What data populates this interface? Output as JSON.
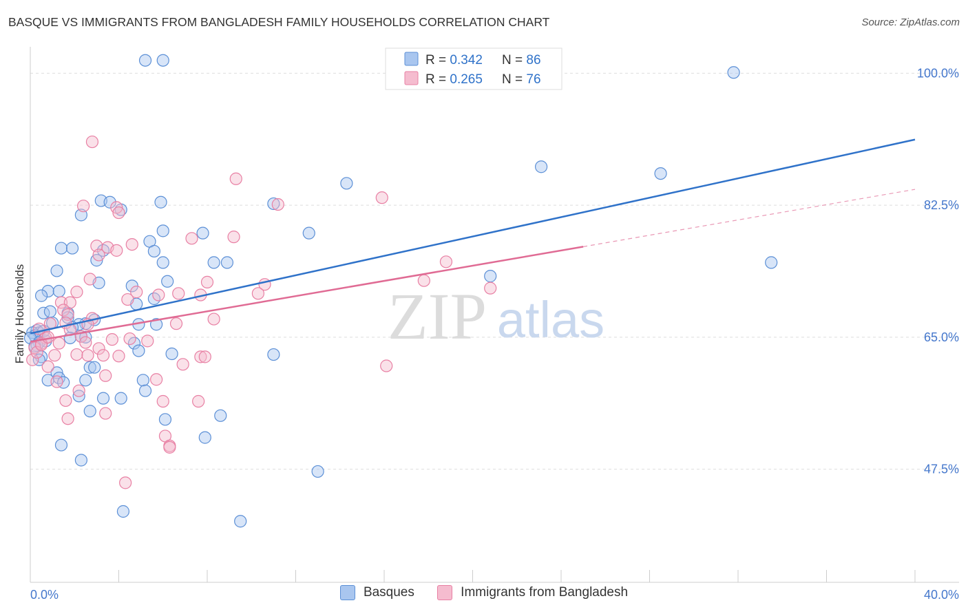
{
  "title": "BASQUE VS IMMIGRANTS FROM BANGLADESH FAMILY HOUSEHOLDS CORRELATION CHART",
  "source": "Source: ZipAtlas.com",
  "watermark": {
    "zip": "ZIP",
    "atlas": "atlas"
  },
  "colors": {
    "blue": "#5b8fd6",
    "blue_fill": "#a9c6ef",
    "blue_line": "#2f72c9",
    "pink": "#e87fa3",
    "pink_fill": "#f5bccf",
    "pink_line": "#e06b94",
    "axis_label": "#4477cc",
    "grid": "#dddddd"
  },
  "chart_data": {
    "type": "scatter",
    "ylabel": "Family Households",
    "xlim": [
      0,
      40
    ],
    "ylim": [
      32.5,
      103.5
    ],
    "x_tick_labels": {
      "left": "0.0%",
      "right": "40.0%"
    },
    "y_ticks": [
      {
        "value": 100.0,
        "label": "100.0%"
      },
      {
        "value": 82.5,
        "label": "82.5%"
      },
      {
        "value": 65.0,
        "label": "65.0%"
      },
      {
        "value": 47.5,
        "label": "47.5%"
      }
    ],
    "legend": [
      {
        "r_label": "R = ",
        "r": "0.342",
        "n_label": "N = ",
        "n": "86"
      },
      {
        "r_label": "R = ",
        "r": "0.265",
        "n_label": "N = ",
        "n": "76"
      }
    ],
    "series": [
      {
        "name": "Basques",
        "trend": {
          "x0": 0,
          "y0": 65.5,
          "x1": 40,
          "y1": 91.2
        },
        "points": [
          [
            5.2,
            101.7
          ],
          [
            6.0,
            101.7
          ],
          [
            31.8,
            100.1
          ],
          [
            23.1,
            87.6
          ],
          [
            28.5,
            86.7
          ],
          [
            14.3,
            85.4
          ],
          [
            3.2,
            83.1
          ],
          [
            5.9,
            82.9
          ],
          [
            3.6,
            82.9
          ],
          [
            11.0,
            82.7
          ],
          [
            4.1,
            81.9
          ],
          [
            2.3,
            81.2
          ],
          [
            6.0,
            79.1
          ],
          [
            7.8,
            78.8
          ],
          [
            12.6,
            78.8
          ],
          [
            5.4,
            77.7
          ],
          [
            1.4,
            76.8
          ],
          [
            1.9,
            76.8
          ],
          [
            3.3,
            76.5
          ],
          [
            5.6,
            76.4
          ],
          [
            3.0,
            75.2
          ],
          [
            6.0,
            74.9
          ],
          [
            8.3,
            74.9
          ],
          [
            8.9,
            74.9
          ],
          [
            33.5,
            74.9
          ],
          [
            1.2,
            73.8
          ],
          [
            20.8,
            73.1
          ],
          [
            6.2,
            72.4
          ],
          [
            3.1,
            72.2
          ],
          [
            4.6,
            71.8
          ],
          [
            0.8,
            71.1
          ],
          [
            1.3,
            71.1
          ],
          [
            0.5,
            70.5
          ],
          [
            5.6,
            70.1
          ],
          [
            4.8,
            69.4
          ],
          [
            0.6,
            68.2
          ],
          [
            0.9,
            68.4
          ],
          [
            1.7,
            68.2
          ],
          [
            1.7,
            67.6
          ],
          [
            2.9,
            67.3
          ],
          [
            1.0,
            66.9
          ],
          [
            2.5,
            66.8
          ],
          [
            2.2,
            66.7
          ],
          [
            4.9,
            66.7
          ],
          [
            5.7,
            66.7
          ],
          [
            1.9,
            66.3
          ],
          [
            0.3,
            65.9
          ],
          [
            0.4,
            65.6
          ],
          [
            0.1,
            65.6
          ],
          [
            0.2,
            65.2
          ],
          [
            0.0,
            64.9
          ],
          [
            2.3,
            65.1
          ],
          [
            2.5,
            65.0
          ],
          [
            1.8,
            64.9
          ],
          [
            0.7,
            64.5
          ],
          [
            0.4,
            64.3
          ],
          [
            4.7,
            64.2
          ],
          [
            0.3,
            63.9
          ],
          [
            4.9,
            63.2
          ],
          [
            6.4,
            62.8
          ],
          [
            11.0,
            62.7
          ],
          [
            0.5,
            62.4
          ],
          [
            2.7,
            61.0
          ],
          [
            2.9,
            61.0
          ],
          [
            1.2,
            60.3
          ],
          [
            1.3,
            59.6
          ],
          [
            0.8,
            59.3
          ],
          [
            2.5,
            59.3
          ],
          [
            5.1,
            59.3
          ],
          [
            1.5,
            59.0
          ],
          [
            5.2,
            57.9
          ],
          [
            3.3,
            56.9
          ],
          [
            4.1,
            56.9
          ],
          [
            2.2,
            57.2
          ],
          [
            2.7,
            55.2
          ],
          [
            8.6,
            54.6
          ],
          [
            6.1,
            54.1
          ],
          [
            7.9,
            51.7
          ],
          [
            1.4,
            50.7
          ],
          [
            2.3,
            48.7
          ],
          [
            13.0,
            47.2
          ],
          [
            4.2,
            41.9
          ],
          [
            9.5,
            40.6
          ],
          [
            0.4,
            62.0
          ],
          [
            0.2,
            63.8
          ],
          [
            0.6,
            65.8
          ]
        ]
      },
      {
        "name": "Immigrants from Bangladesh",
        "trend": {
          "x0": 0,
          "y0": 64.4,
          "x1": 25,
          "y1": 77.0
        },
        "dash": {
          "x0": 25,
          "y0": 77.0,
          "x1": 40,
          "y1": 84.6
        },
        "points": [
          [
            2.8,
            90.9
          ],
          [
            9.3,
            86.0
          ],
          [
            15.9,
            83.5
          ],
          [
            2.4,
            82.4
          ],
          [
            11.2,
            82.6
          ],
          [
            3.9,
            82.2
          ],
          [
            4.0,
            81.5
          ],
          [
            9.2,
            78.3
          ],
          [
            7.3,
            78.1
          ],
          [
            4.6,
            77.3
          ],
          [
            3.0,
            77.1
          ],
          [
            3.5,
            76.9
          ],
          [
            3.9,
            76.5
          ],
          [
            3.1,
            75.9
          ],
          [
            18.8,
            75.0
          ],
          [
            2.7,
            72.7
          ],
          [
            17.8,
            72.5
          ],
          [
            8.0,
            72.3
          ],
          [
            10.6,
            72.0
          ],
          [
            20.8,
            71.5
          ],
          [
            4.8,
            71.0
          ],
          [
            2.1,
            71.0
          ],
          [
            10.3,
            70.8
          ],
          [
            6.7,
            70.8
          ],
          [
            7.7,
            70.6
          ],
          [
            5.8,
            70.6
          ],
          [
            4.4,
            70.0
          ],
          [
            1.4,
            69.6
          ],
          [
            1.8,
            69.6
          ],
          [
            1.5,
            68.6
          ],
          [
            1.7,
            68.0
          ],
          [
            8.3,
            67.4
          ],
          [
            2.8,
            67.5
          ],
          [
            1.6,
            66.9
          ],
          [
            0.9,
            66.8
          ],
          [
            6.6,
            66.8
          ],
          [
            2.6,
            66.7
          ],
          [
            0.4,
            66.1
          ],
          [
            1.8,
            66.0
          ],
          [
            2.3,
            65.1
          ],
          [
            0.7,
            64.9
          ],
          [
            4.5,
            64.8
          ],
          [
            3.7,
            64.7
          ],
          [
            5.3,
            64.5
          ],
          [
            2.5,
            64.3
          ],
          [
            0.5,
            64.2
          ],
          [
            1.3,
            64.2
          ],
          [
            0.2,
            63.6
          ],
          [
            3.1,
            63.5
          ],
          [
            16.1,
            61.2
          ],
          [
            2.1,
            62.7
          ],
          [
            3.3,
            62.6
          ],
          [
            2.6,
            62.6
          ],
          [
            4.0,
            62.5
          ],
          [
            7.7,
            62.4
          ],
          [
            7.9,
            62.4
          ],
          [
            1.1,
            62.6
          ],
          [
            0.8,
            61.1
          ],
          [
            6.9,
            61.4
          ],
          [
            3.4,
            59.9
          ],
          [
            5.7,
            59.4
          ],
          [
            1.2,
            59.1
          ],
          [
            2.2,
            57.9
          ],
          [
            1.6,
            56.6
          ],
          [
            6.0,
            56.5
          ],
          [
            7.6,
            56.5
          ],
          [
            3.4,
            54.9
          ],
          [
            1.7,
            54.2
          ],
          [
            6.1,
            51.9
          ],
          [
            6.3,
            50.6
          ],
          [
            6.3,
            50.4
          ],
          [
            4.3,
            45.7
          ],
          [
            0.1,
            62.0
          ],
          [
            0.3,
            63.0
          ],
          [
            0.5,
            64.0
          ],
          [
            0.8,
            65.0
          ]
        ]
      }
    ]
  }
}
